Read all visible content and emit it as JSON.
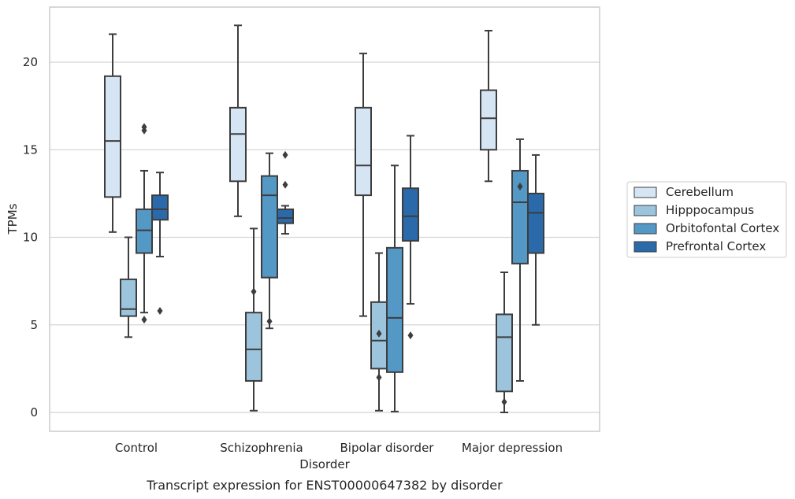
{
  "caption": "Transcript expression for ENST00000647382 by disorder",
  "chart_data": {
    "type": "boxplot",
    "xlabel": "Disorder",
    "ylabel": "TPMs",
    "ylim": [
      -1.0,
      23.0
    ],
    "yticks": [
      0,
      5,
      10,
      15,
      20
    ],
    "grid": "horizontal",
    "legend_position": "right",
    "categories": [
      "Control",
      "Schizophrenia",
      "Bipolar disorder",
      "Major depression"
    ],
    "series": [
      {
        "name": "Cerebellum",
        "color": "#d6e5f4",
        "boxes": [
          {
            "whislo": 10.3,
            "q1": 12.3,
            "med": 15.5,
            "q3": 19.2,
            "whishi": 21.6,
            "fliers": []
          },
          {
            "whislo": 11.2,
            "q1": 13.2,
            "med": 15.9,
            "q3": 17.4,
            "whishi": 22.1,
            "fliers": []
          },
          {
            "whislo": 5.5,
            "q1": 12.4,
            "med": 14.1,
            "q3": 17.4,
            "whishi": 20.5,
            "fliers": []
          },
          {
            "whislo": 13.2,
            "q1": 15.0,
            "med": 16.8,
            "q3": 18.4,
            "whishi": 21.8,
            "fliers": []
          }
        ]
      },
      {
        "name": "Hipppocampus",
        "color": "#9cc4dd",
        "boxes": [
          {
            "whislo": 4.3,
            "q1": 5.5,
            "med": 5.9,
            "q3": 7.6,
            "whishi": 10.0,
            "fliers": []
          },
          {
            "whislo": 0.1,
            "q1": 1.8,
            "med": 3.6,
            "q3": 5.7,
            "whishi": 10.5,
            "fliers": [
              6.9
            ]
          },
          {
            "whislo": 0.1,
            "q1": 2.5,
            "med": 4.1,
            "q3": 6.3,
            "whishi": 9.1,
            "fliers": [
              4.5,
              2.0
            ]
          },
          {
            "whislo": 0.0,
            "q1": 1.2,
            "med": 4.3,
            "q3": 5.6,
            "whishi": 8.0,
            "fliers": [
              0.6
            ]
          }
        ]
      },
      {
        "name": "Orbitofontal Cortex",
        "color": "#5498c6",
        "boxes": [
          {
            "whislo": 5.7,
            "q1": 9.1,
            "med": 10.4,
            "q3": 11.6,
            "whishi": 13.8,
            "fliers": [
              16.3,
              16.1,
              5.3
            ]
          },
          {
            "whislo": 4.8,
            "q1": 7.7,
            "med": 12.4,
            "q3": 13.5,
            "whishi": 14.8,
            "fliers": [
              5.2
            ]
          },
          {
            "whislo": 0.05,
            "q1": 2.3,
            "med": 5.4,
            "q3": 9.4,
            "whishi": 14.1,
            "fliers": []
          },
          {
            "whislo": 1.8,
            "q1": 8.5,
            "med": 12.0,
            "q3": 13.8,
            "whishi": 15.6,
            "fliers": [
              12.9
            ]
          }
        ]
      },
      {
        "name": "Prefrontal Cortex",
        "color": "#2a6aaa",
        "boxes": [
          {
            "whislo": 8.9,
            "q1": 11.0,
            "med": 11.6,
            "q3": 12.4,
            "whishi": 13.7,
            "fliers": [
              5.8
            ]
          },
          {
            "whislo": 10.2,
            "q1": 10.8,
            "med": 11.1,
            "q3": 11.6,
            "whishi": 11.8,
            "fliers": [
              14.7,
              13.0
            ]
          },
          {
            "whislo": 6.2,
            "q1": 9.8,
            "med": 11.2,
            "q3": 12.8,
            "whishi": 15.8,
            "fliers": [
              4.4
            ]
          },
          {
            "whislo": 5.0,
            "q1": 9.1,
            "med": 11.4,
            "q3": 12.5,
            "whishi": 14.7,
            "fliers": []
          }
        ]
      }
    ]
  }
}
